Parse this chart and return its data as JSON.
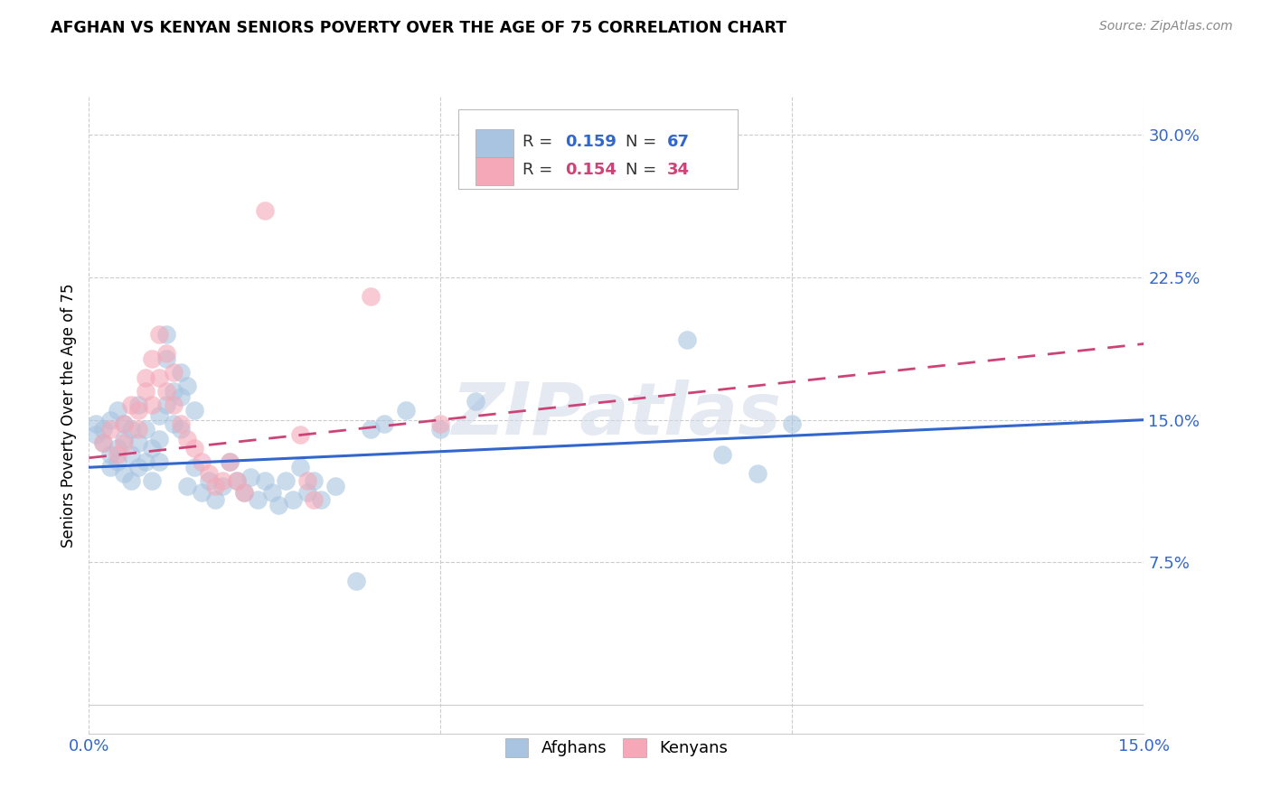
{
  "title": "AFGHAN VS KENYAN SENIORS POVERTY OVER THE AGE OF 75 CORRELATION CHART",
  "source": "Source: ZipAtlas.com",
  "ylabel": "Seniors Poverty Over the Age of 75",
  "watermark": "ZIPatlas",
  "xlim": [
    0.0,
    0.15
  ],
  "ylim": [
    -0.015,
    0.32
  ],
  "yticks": [
    0.075,
    0.15,
    0.225,
    0.3
  ],
  "ytick_labels": [
    "7.5%",
    "15.0%",
    "22.5%",
    "30.0%"
  ],
  "xtick_labels": [
    "0.0%",
    "15.0%"
  ],
  "grid_color": "#cccccc",
  "afghan_color": "#a8c4e0",
  "kenyan_color": "#f4a8b8",
  "afghan_line_color": "#3366cc",
  "kenyan_line_color": "#cc4477",
  "afghan_line": [
    0.0,
    0.125,
    0.15,
    0.15
  ],
  "kenyan_line": [
    0.0,
    0.13,
    0.15,
    0.19
  ],
  "afghan_scatter": [
    [
      0.001,
      0.148
    ],
    [
      0.001,
      0.142
    ],
    [
      0.002,
      0.138
    ],
    [
      0.002,
      0.145
    ],
    [
      0.003,
      0.125
    ],
    [
      0.003,
      0.132
    ],
    [
      0.003,
      0.15
    ],
    [
      0.004,
      0.135
    ],
    [
      0.004,
      0.128
    ],
    [
      0.004,
      0.155
    ],
    [
      0.005,
      0.14
    ],
    [
      0.005,
      0.122
    ],
    [
      0.005,
      0.148
    ],
    [
      0.006,
      0.132
    ],
    [
      0.006,
      0.118
    ],
    [
      0.006,
      0.145
    ],
    [
      0.007,
      0.138
    ],
    [
      0.007,
      0.158
    ],
    [
      0.007,
      0.125
    ],
    [
      0.008,
      0.145
    ],
    [
      0.008,
      0.128
    ],
    [
      0.009,
      0.135
    ],
    [
      0.009,
      0.118
    ],
    [
      0.01,
      0.152
    ],
    [
      0.01,
      0.14
    ],
    [
      0.01,
      0.128
    ],
    [
      0.011,
      0.195
    ],
    [
      0.011,
      0.182
    ],
    [
      0.011,
      0.158
    ],
    [
      0.012,
      0.165
    ],
    [
      0.012,
      0.148
    ],
    [
      0.013,
      0.175
    ],
    [
      0.013,
      0.162
    ],
    [
      0.013,
      0.145
    ],
    [
      0.014,
      0.168
    ],
    [
      0.014,
      0.115
    ],
    [
      0.015,
      0.155
    ],
    [
      0.015,
      0.125
    ],
    [
      0.016,
      0.112
    ],
    [
      0.017,
      0.118
    ],
    [
      0.018,
      0.108
    ],
    [
      0.019,
      0.115
    ],
    [
      0.02,
      0.128
    ],
    [
      0.021,
      0.118
    ],
    [
      0.022,
      0.112
    ],
    [
      0.023,
      0.12
    ],
    [
      0.024,
      0.108
    ],
    [
      0.025,
      0.118
    ],
    [
      0.026,
      0.112
    ],
    [
      0.027,
      0.105
    ],
    [
      0.028,
      0.118
    ],
    [
      0.029,
      0.108
    ],
    [
      0.03,
      0.125
    ],
    [
      0.031,
      0.112
    ],
    [
      0.032,
      0.118
    ],
    [
      0.033,
      0.108
    ],
    [
      0.035,
      0.115
    ],
    [
      0.038,
      0.065
    ],
    [
      0.04,
      0.145
    ],
    [
      0.042,
      0.148
    ],
    [
      0.045,
      0.155
    ],
    [
      0.05,
      0.145
    ],
    [
      0.055,
      0.16
    ],
    [
      0.085,
      0.192
    ],
    [
      0.09,
      0.132
    ],
    [
      0.095,
      0.122
    ],
    [
      0.1,
      0.148
    ]
  ],
  "kenyan_scatter": [
    [
      0.002,
      0.138
    ],
    [
      0.003,
      0.145
    ],
    [
      0.004,
      0.132
    ],
    [
      0.005,
      0.148
    ],
    [
      0.005,
      0.138
    ],
    [
      0.006,
      0.158
    ],
    [
      0.007,
      0.145
    ],
    [
      0.007,
      0.155
    ],
    [
      0.008,
      0.165
    ],
    [
      0.008,
      0.172
    ],
    [
      0.009,
      0.182
    ],
    [
      0.009,
      0.158
    ],
    [
      0.01,
      0.195
    ],
    [
      0.01,
      0.172
    ],
    [
      0.011,
      0.185
    ],
    [
      0.011,
      0.165
    ],
    [
      0.012,
      0.175
    ],
    [
      0.012,
      0.158
    ],
    [
      0.013,
      0.148
    ],
    [
      0.014,
      0.14
    ],
    [
      0.015,
      0.135
    ],
    [
      0.016,
      0.128
    ],
    [
      0.017,
      0.122
    ],
    [
      0.018,
      0.115
    ],
    [
      0.019,
      0.118
    ],
    [
      0.02,
      0.128
    ],
    [
      0.021,
      0.118
    ],
    [
      0.022,
      0.112
    ],
    [
      0.025,
      0.26
    ],
    [
      0.03,
      0.142
    ],
    [
      0.031,
      0.118
    ],
    [
      0.032,
      0.108
    ],
    [
      0.04,
      0.215
    ],
    [
      0.05,
      0.148
    ]
  ]
}
